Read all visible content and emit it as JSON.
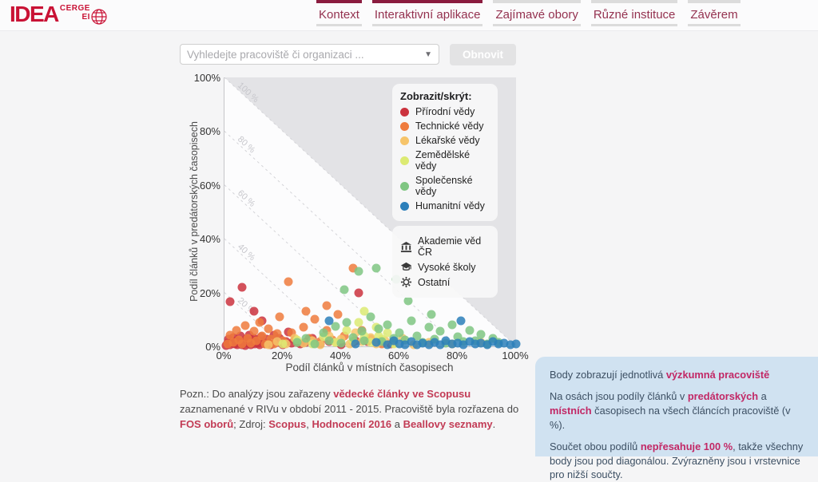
{
  "header": {
    "logo": {
      "main": "IDEA",
      "sub_top": "CERGE",
      "sub_bottom": "EI"
    },
    "nav": [
      {
        "label": "Kontext",
        "active": true
      },
      {
        "label": "Interaktivní aplikace",
        "active": true
      },
      {
        "label": "Zajímavé obory",
        "active": false
      },
      {
        "label": "Různé instituce",
        "active": false
      },
      {
        "label": "Závěrem",
        "active": false
      }
    ]
  },
  "controls": {
    "search_placeholder": "Vyhledejte pracoviště či organizaci ...",
    "reset_label": "Obnovit"
  },
  "chart_data": {
    "type": "scatter",
    "xlabel": "Podíl článků v místních časopisech",
    "ylabel": "Podíl článků v predátorských časopisech",
    "xlim": [
      0,
      100
    ],
    "ylim": [
      0,
      100
    ],
    "x_ticks": [
      "0%",
      "20%",
      "40%",
      "60%",
      "80%",
      "100%"
    ],
    "y_ticks": [
      "100%",
      "80%",
      "60%",
      "40%",
      "20%",
      "0%"
    ],
    "grid": false,
    "legend_position": "top-right",
    "contours": [
      {
        "value": 100,
        "label": "100 %"
      },
      {
        "value": 80,
        "label": "80 %"
      },
      {
        "value": 60,
        "label": "60 %"
      },
      {
        "value": 40,
        "label": "40 %"
      },
      {
        "value": 20,
        "label": "20 %"
      }
    ],
    "series": [
      {
        "name": "Přírodní vědy",
        "color": "#cb333e",
        "points": [
          [
            0.5,
            0.4
          ],
          [
            1,
            1.3
          ],
          [
            1.5,
            2.8
          ],
          [
            2,
            0.6
          ],
          [
            2.5,
            1.6
          ],
          [
            3,
            3.2
          ],
          [
            3.5,
            0.9
          ],
          [
            4,
            2.1
          ],
          [
            4.5,
            0.5
          ],
          [
            5,
            1.4
          ],
          [
            5.5,
            3.8
          ],
          [
            6,
            0.7
          ],
          [
            6.5,
            1.9
          ],
          [
            7,
            0.4
          ],
          [
            7.5,
            2.6
          ],
          [
            8,
            1.1
          ],
          [
            8.5,
            4.2
          ],
          [
            9,
            0.6
          ],
          [
            9.5,
            1.7
          ],
          [
            10,
            3.1
          ],
          [
            10.5,
            0.8
          ],
          [
            11,
            2.3
          ],
          [
            11.5,
            1.2
          ],
          [
            12,
            0.5
          ],
          [
            12.5,
            3.6
          ],
          [
            13,
            1.8
          ],
          [
            14,
            0.9
          ],
          [
            14.5,
            2.7
          ],
          [
            15,
            1.3
          ],
          [
            16,
            0.6
          ],
          [
            17,
            4.1
          ],
          [
            18,
            1.6
          ],
          [
            19,
            2.9
          ],
          [
            20,
            0.7
          ],
          [
            21,
            1.9
          ],
          [
            22,
            5.2
          ],
          [
            23,
            1.1
          ],
          [
            24,
            2.4
          ],
          [
            26,
            0.8
          ],
          [
            28,
            1.5
          ],
          [
            30,
            3
          ],
          [
            33,
            0.9
          ],
          [
            36,
            1.7
          ],
          [
            40,
            0.6
          ],
          [
            45,
            2.1
          ],
          [
            49,
            1.9
          ],
          [
            57,
            0.9
          ],
          [
            2,
            16.5
          ],
          [
            6,
            22
          ],
          [
            10,
            13
          ],
          [
            13,
            9.5
          ],
          [
            46,
            20
          ]
        ]
      },
      {
        "name": "Technické vědy",
        "color": "#ef7b3d",
        "points": [
          [
            1,
            0.8
          ],
          [
            2,
            4.2
          ],
          [
            3,
            1.5
          ],
          [
            4,
            6
          ],
          [
            5,
            2.5
          ],
          [
            6,
            0.9
          ],
          [
            7,
            7.8
          ],
          [
            8,
            3
          ],
          [
            9,
            1.2
          ],
          [
            10,
            5.5
          ],
          [
            11,
            2
          ],
          [
            12,
            9
          ],
          [
            13,
            3.8
          ],
          [
            14,
            1
          ],
          [
            15,
            6.5
          ],
          [
            16,
            2.8
          ],
          [
            17,
            0.8
          ],
          [
            18,
            4.6
          ],
          [
            19,
            11
          ],
          [
            20,
            2
          ],
          [
            23,
            5
          ],
          [
            25,
            1.5
          ],
          [
            27,
            7
          ],
          [
            29,
            3
          ],
          [
            31,
            10
          ],
          [
            33,
            1.8
          ],
          [
            35,
            5.8
          ],
          [
            37,
            2.5
          ],
          [
            39,
            12
          ],
          [
            41,
            4
          ],
          [
            44,
            1.5
          ],
          [
            47,
            6
          ],
          [
            50,
            2.8
          ],
          [
            54,
            1
          ],
          [
            22,
            24
          ],
          [
            44,
            29
          ],
          [
            35,
            15
          ],
          [
            28,
            13
          ]
        ]
      },
      {
        "name": "Lékařské vědy",
        "color": "#f6c46a",
        "points": [
          [
            15,
            0.6
          ],
          [
            18,
            1.8
          ],
          [
            21,
            0.9
          ],
          [
            24,
            3
          ],
          [
            27,
            1.2
          ],
          [
            30,
            2.2
          ],
          [
            33,
            0.7
          ],
          [
            36,
            4
          ],
          [
            38,
            1.5
          ],
          [
            40,
            2.8
          ],
          [
            43,
            0.8
          ],
          [
            45,
            5
          ],
          [
            47,
            1.9
          ],
          [
            50,
            3.4
          ],
          [
            52,
            0.9
          ],
          [
            55,
            2.1
          ],
          [
            58,
            1.2
          ],
          [
            61,
            3
          ],
          [
            65,
            0.7
          ],
          [
            70,
            1.6
          ],
          [
            78,
            0.8
          ],
          [
            88,
            1.4
          ]
        ]
      },
      {
        "name": "Zemědělské vědy",
        "color": "#dcea73",
        "points": [
          [
            20,
            1
          ],
          [
            25,
            2.4
          ],
          [
            30,
            0.8
          ],
          [
            34,
            3.5
          ],
          [
            38,
            1.6
          ],
          [
            42,
            6
          ],
          [
            44,
            2.2
          ],
          [
            46,
            9
          ],
          [
            48,
            4
          ],
          [
            50,
            1.4
          ],
          [
            52,
            7
          ],
          [
            54,
            2.8
          ],
          [
            56,
            5
          ],
          [
            58,
            1
          ],
          [
            48,
            13
          ],
          [
            53,
            3.9
          ]
        ]
      },
      {
        "name": "Společenské vědy",
        "color": "#7fc682",
        "points": [
          [
            25,
            1.5
          ],
          [
            28,
            3
          ],
          [
            31,
            0.9
          ],
          [
            34,
            5
          ],
          [
            36,
            2.1
          ],
          [
            38,
            7.5
          ],
          [
            40,
            1.2
          ],
          [
            42,
            9
          ],
          [
            44,
            3.4
          ],
          [
            46,
            28
          ],
          [
            47,
            5.5
          ],
          [
            48,
            2
          ],
          [
            50,
            11
          ],
          [
            52,
            29
          ],
          [
            53,
            6.5
          ],
          [
            54,
            1.8
          ],
          [
            56,
            8
          ],
          [
            58,
            3
          ],
          [
            59,
            25
          ],
          [
            60,
            5
          ],
          [
            62,
            2.4
          ],
          [
            63,
            17
          ],
          [
            64,
            9.5
          ],
          [
            66,
            4
          ],
          [
            68,
            1.5
          ],
          [
            70,
            7
          ],
          [
            71,
            12
          ],
          [
            72,
            2.8
          ],
          [
            74,
            5.5
          ],
          [
            76,
            1.2
          ],
          [
            78,
            8
          ],
          [
            80,
            3.5
          ],
          [
            82,
            1.8
          ],
          [
            84,
            6
          ],
          [
            86,
            2.2
          ],
          [
            88,
            4.5
          ],
          [
            90,
            1
          ],
          [
            92,
            3
          ],
          [
            94,
            1.6
          ],
          [
            41,
            21
          ]
        ]
      },
      {
        "name": "Humanitní vědy",
        "color": "#2c7fba",
        "points": [
          [
            36,
            9.5
          ],
          [
            45,
            0.8
          ],
          [
            52,
            1.4
          ],
          [
            56,
            0.6
          ],
          [
            58,
            2
          ],
          [
            60,
            1
          ],
          [
            62,
            0.5
          ],
          [
            64,
            1.8
          ],
          [
            66,
            0.7
          ],
          [
            68,
            1.2
          ],
          [
            70,
            0.5
          ],
          [
            72,
            1.5
          ],
          [
            74,
            0.6
          ],
          [
            76,
            2.2
          ],
          [
            78,
            0.9
          ],
          [
            80,
            1.3
          ],
          [
            81,
            9.5
          ],
          [
            82,
            0.5
          ],
          [
            84,
            1.7
          ],
          [
            86,
            0.8
          ],
          [
            88,
            1.1
          ],
          [
            90,
            0.6
          ],
          [
            92,
            1.9
          ],
          [
            94,
            0.9
          ],
          [
            96,
            1.3
          ],
          [
            98,
            0.7
          ],
          [
            100,
            1
          ]
        ]
      }
    ]
  },
  "legend": {
    "title": "Zobrazit/skrýt:",
    "fields": [
      {
        "label": "Přírodní vědy",
        "color": "#cb333e"
      },
      {
        "label": "Technické vědy",
        "color": "#ef7b3d"
      },
      {
        "label": "Lékařské vědy",
        "color": "#f6c46a"
      },
      {
        "label": "Zemědělské vědy",
        "color": "#dcea73"
      },
      {
        "label": "Společenské vědy",
        "color": "#7fc682"
      },
      {
        "label": "Humanitní vědy",
        "color": "#2c7fba"
      }
    ],
    "institutions": [
      {
        "label": "Akademie věd ČR",
        "icon": "bank-icon"
      },
      {
        "label": "Vysoké školy",
        "icon": "graduation-cap-icon"
      },
      {
        "label": "Ostatní",
        "icon": "gear-icon"
      }
    ]
  },
  "note": {
    "segments": [
      {
        "text": "Pozn.: Do analýzy jsou zařazeny ",
        "link": false
      },
      {
        "text": "vědecké články ve Scopusu",
        "link": true
      },
      {
        "text": " zaznamenané v RIVu v období 2011 - 2015. Pracoviště byla rozřazena do ",
        "link": false
      },
      {
        "text": "FOS oborů",
        "link": true
      },
      {
        "text": "; Zdroj: ",
        "link": false
      },
      {
        "text": "Scopus",
        "link": true
      },
      {
        "text": ", ",
        "link": false
      },
      {
        "text": "Hodnocení 2016",
        "link": true
      },
      {
        "text": " a ",
        "link": false
      },
      {
        "text": "Beallovy seznamy",
        "link": true
      },
      {
        "text": ".",
        "link": false
      }
    ]
  },
  "info_panel": {
    "paragraphs": [
      [
        {
          "text": "Body zobrazují jednotlivá ",
          "bold": false
        },
        {
          "text": "výzkumná pracoviště",
          "bold": true
        }
      ],
      [
        {
          "text": "Na osách jsou podíly článků v ",
          "bold": false
        },
        {
          "text": "predátorských",
          "bold": true
        },
        {
          "text": " a ",
          "bold": false
        },
        {
          "text": "místních",
          "bold": true
        },
        {
          "text": " časopisech na všech článcích pracoviště (v %).",
          "bold": false
        }
      ],
      [
        {
          "text": "Součet obou podílů ",
          "bold": false
        },
        {
          "text": "nepřesahuje 100 %",
          "bold": true
        },
        {
          "text": ", takže všechny body jsou pod diagonálou. Zvýrazněny jsou i vrstevnice pro nižší součty.",
          "bold": false
        }
      ]
    ]
  }
}
